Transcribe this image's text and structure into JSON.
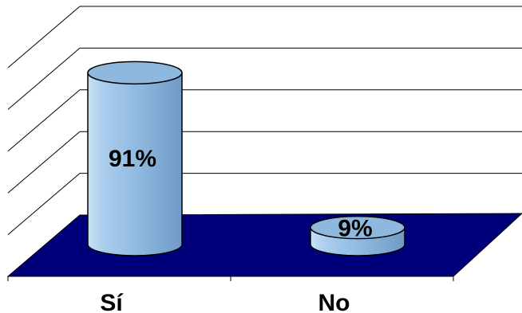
{
  "chart_data": {
    "type": "bar",
    "style": "3d-cylinder",
    "categories": [
      "Sí",
      "No"
    ],
    "values": [
      91,
      9
    ],
    "data_labels": [
      "91%",
      "9%"
    ],
    "ylim": [
      0,
      100
    ],
    "grid": true,
    "legend": "none",
    "colors": {
      "bar": "#8fb8df",
      "bar_edge": "#000000",
      "floor": "#00007a",
      "gridline": "#000000",
      "background": "#ffffff"
    }
  }
}
